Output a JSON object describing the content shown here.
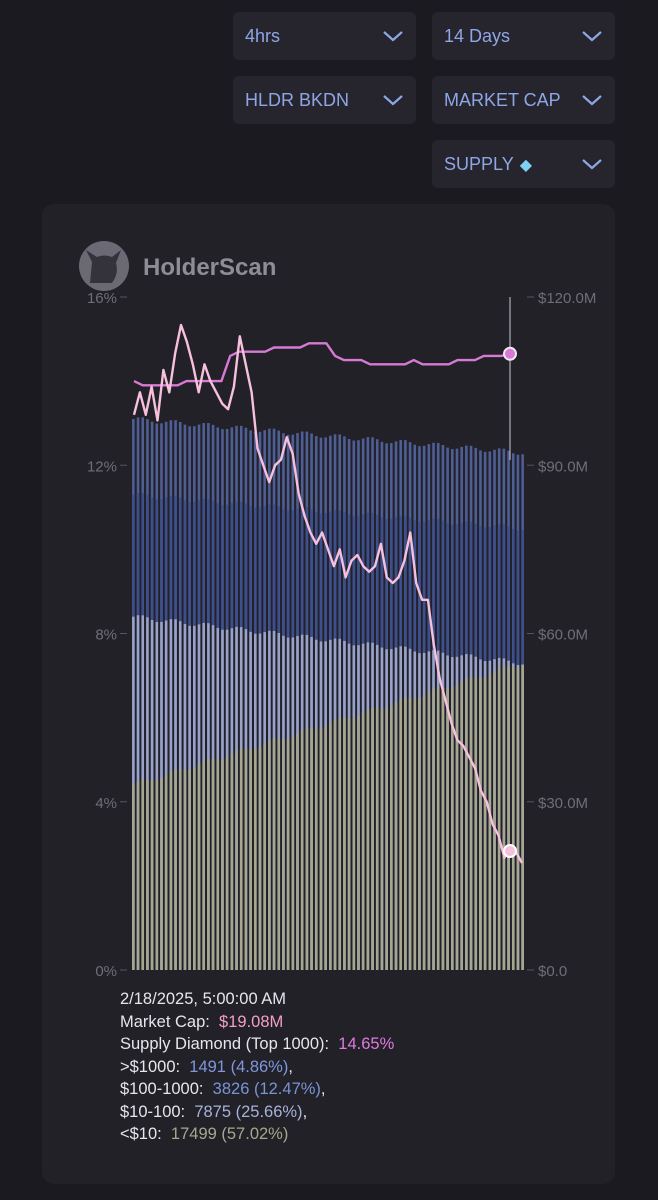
{
  "controls": {
    "interval": "4hrs",
    "range": "14 Days",
    "metric": "HLDR BKDN",
    "overlay": "MARKET CAP",
    "supply": "SUPPLY",
    "supply_icon": "gem-icon"
  },
  "brand": {
    "name": "HolderScan",
    "logo_icon": "cat-logo-icon"
  },
  "colors": {
    "background": "#1b1a20",
    "card": "#222128",
    "accent": "#8fa6e6",
    "market_cap_line": "#f7c0dc",
    "supply_diamond_line": "#d77ad6",
    "band_over_1000": "#4f5f95",
    "band_100_1000": "#3d4f8c",
    "band_10_100": "#9aa3c7",
    "band_under_10": "#a6a78e"
  },
  "chart_data": {
    "type": "bar",
    "stacked": true,
    "left_axis": {
      "ticks": [
        "0%",
        "4%",
        "8%",
        "12%",
        "16%"
      ],
      "range": [
        0,
        16
      ]
    },
    "right_axis": {
      "ticks": [
        "$0.0",
        "$30.0M",
        "$60.0M",
        "$90.0M",
        "$120.0M"
      ],
      "range": [
        0,
        120
      ]
    },
    "bar_count": 84,
    "bands": [
      {
        "name": "<$10",
        "start": 4.4,
        "end": 7.3
      },
      {
        "name": "$10-100",
        "start": 8.4,
        "end": 7.3
      },
      {
        "name": "$100-1000",
        "start": 11.3,
        "end": 10.5
      },
      {
        "name": ">$1000",
        "start": 13.1,
        "end": 12.3
      }
    ],
    "series": [
      {
        "name": "Market Cap",
        "axis": "right",
        "unit": "$M",
        "values": [
          99,
          103,
          99,
          104,
          98,
          107,
          103,
          110,
          115,
          112,
          108,
          103,
          108,
          105,
          103,
          101,
          100,
          104,
          113,
          108,
          103,
          93,
          90,
          87,
          90,
          91,
          95,
          92,
          85,
          81,
          78,
          76,
          78,
          75,
          72,
          75,
          70,
          73,
          74,
          72,
          71,
          72,
          76,
          70,
          69,
          70,
          73,
          78,
          69,
          66,
          66,
          58,
          52,
          48,
          44,
          41,
          40,
          38,
          36,
          32,
          30,
          26,
          24,
          20,
          22,
          21,
          19.08
        ]
      },
      {
        "name": "Supply Diamond (Top 1000)",
        "axis": "left",
        "unit": "%",
        "values": [
          14.0,
          13.9,
          13.9,
          13.9,
          13.9,
          13.9,
          14.0,
          14.0,
          14.0,
          14.0,
          14.0,
          14.6,
          14.7,
          14.7,
          14.7,
          14.7,
          14.8,
          14.8,
          14.8,
          14.8,
          14.9,
          14.9,
          14.9,
          14.6,
          14.5,
          14.5,
          14.5,
          14.4,
          14.4,
          14.4,
          14.4,
          14.4,
          14.5,
          14.4,
          14.4,
          14.4,
          14.4,
          14.5,
          14.5,
          14.5,
          14.6,
          14.6,
          14.6,
          14.65
        ]
      }
    ]
  },
  "tooltip": {
    "date": "2/18/2025, 5:00:00 AM",
    "market_cap_label": "Market Cap:",
    "market_cap_value": "$19.08M",
    "supply_label": "Supply Diamond (Top 1000):",
    "supply_value": "14.65%",
    "over_1000_label": ">$1000:",
    "over_1000_value": "1491 (4.86%)",
    "b100_1000_label": "$100-1000:",
    "b100_1000_value": "3826 (12.47%)",
    "b10_100_label": "$10-100:",
    "b10_100_value": "7875 (25.66%)",
    "under_10_label": "<$10:",
    "under_10_value": "17499 (57.02%)"
  }
}
